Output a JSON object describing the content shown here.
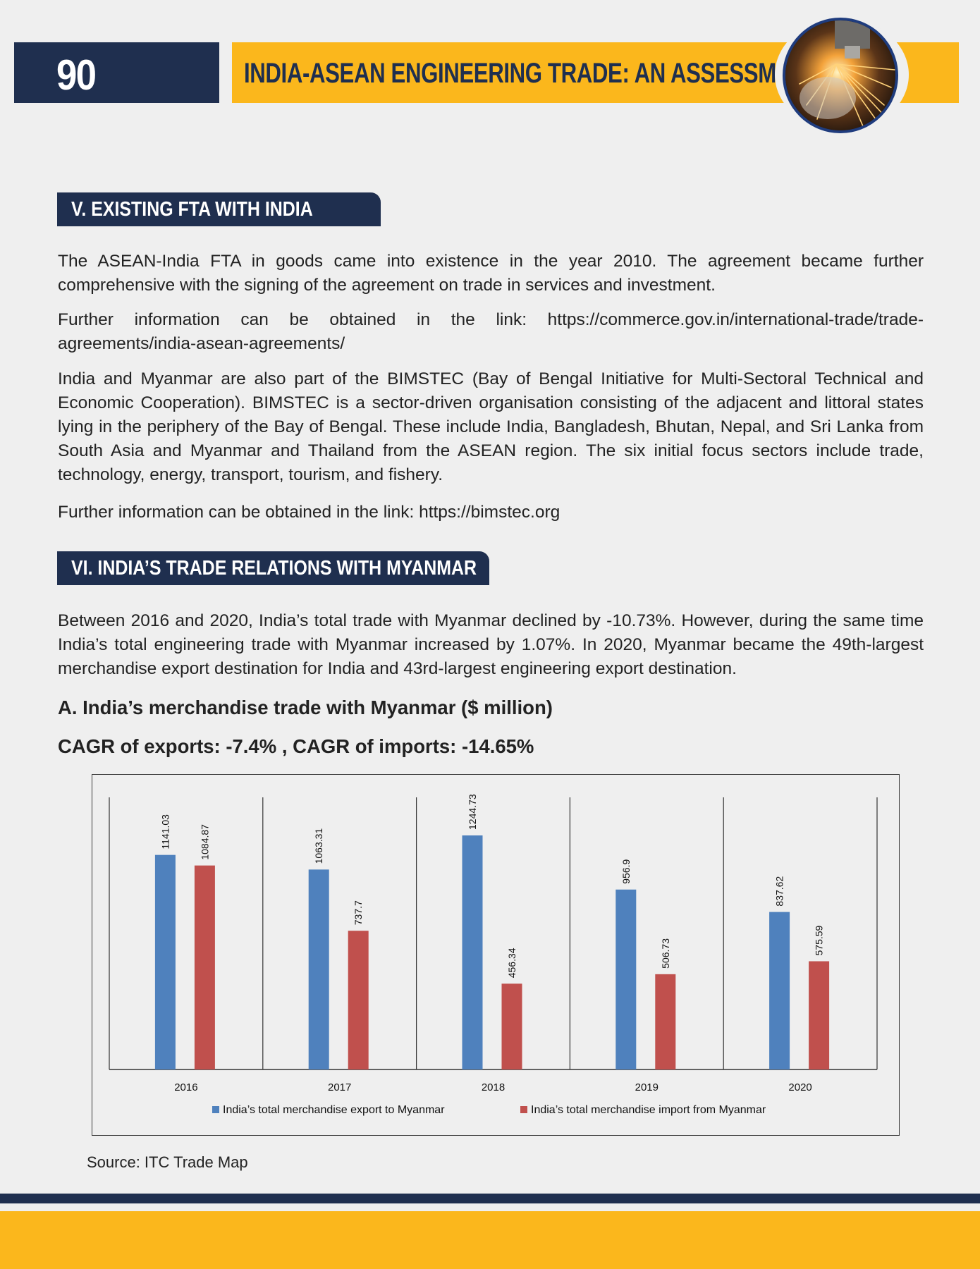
{
  "header": {
    "page_number": "90",
    "title": "INDIA-ASEAN ENGINEERING TRADE: AN ASSESSMENT"
  },
  "section5": {
    "heading": "V. EXISTING FTA WITH INDIA",
    "p1": "The ASEAN-India FTA in goods came into existence in the year 2010. The agreement became further comprehensive with the signing of the agreement on trade in services and investment.",
    "p2": "Further information can be obtained in the link: https://commerce.gov.in/international-trade/trade-agreements/india-asean-agreements/",
    "p3": "India and Myanmar are also part of the BIMSTEC (Bay of Bengal Initiative for Multi-Sectoral Technical and Economic Cooperation). BIMSTEC is a sector-driven organisation consisting of the adjacent and littoral states lying in the periphery of the Bay of Bengal. These include India, Bangladesh, Bhutan, Nepal, and Sri Lanka from South Asia and Myanmar and Thailand from the ASEAN region. The six initial focus sectors include trade, technology, energy, transport, tourism, and fishery.",
    "p4": "Further information can be obtained in the link: https://bimstec.org"
  },
  "section6": {
    "heading": "VI. INDIA’S TRADE RELATIONS WITH MYANMAR",
    "p1": "Between 2016 and 2020, India’s total trade with Myanmar declined by -10.73%. However, during the same time India’s total engineering trade with Myanmar increased by 1.07%. In 2020, Myanmar became the 49th-largest merchandise export destination for India and 43rd-largest engineering export destination.",
    "subhead": "A. India’s merchandise trade with Myanmar ($ million)",
    "cagr": "CAGR of exports: -7.4% , CAGR of imports: -14.65%",
    "source": "Source: ITC Trade Map"
  },
  "chart_data": {
    "type": "bar",
    "categories": [
      "2016",
      "2017",
      "2018",
      "2019",
      "2020"
    ],
    "series": [
      {
        "name": "India’s total merchandise export to Myanmar",
        "values": [
          1141.03,
          1063.31,
          1244.73,
          956.9,
          837.62
        ],
        "labels": [
          "1141.03",
          "1063.31",
          "1244.73",
          "956.9",
          "837.62"
        ],
        "color": "#4f81bd"
      },
      {
        "name": "India’s total merchandise import from Myanmar",
        "values": [
          1084.87,
          737.7,
          456.34,
          506.73,
          575.59
        ],
        "labels": [
          "1084.87",
          "737.7",
          "456.34",
          "506.73",
          "575.59"
        ],
        "color": "#c0504d"
      }
    ],
    "ylim": [
      0,
      1400
    ],
    "grid": false,
    "legend": "bottom",
    "data_labels": "rotated-vertical"
  },
  "colors": {
    "navy": "#1f2f4f",
    "yellow": "#fbb71c",
    "background": "#efefef"
  }
}
